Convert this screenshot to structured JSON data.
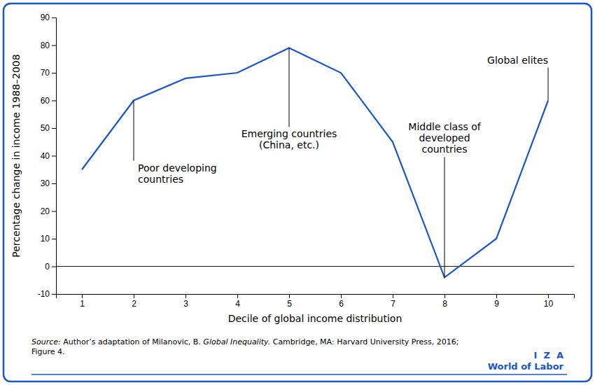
{
  "chart_data": {
    "type": "line",
    "x": [
      1,
      2,
      3,
      4,
      5,
      6,
      7,
      8,
      9,
      10
    ],
    "values": [
      35,
      60,
      68,
      70,
      79,
      70,
      45,
      -4,
      10,
      60
    ],
    "color": "#1a56cc",
    "xlim": [
      0.5,
      10.5
    ],
    "ylim": [
      -10,
      90
    ],
    "xticks": [
      1,
      2,
      3,
      4,
      5,
      6,
      7,
      8,
      9,
      10
    ],
    "yticks": [
      -10,
      0,
      10,
      20,
      30,
      40,
      50,
      60,
      70,
      80,
      90
    ],
    "xlabel": "Decile of global income distribution",
    "ylabel": "Percentage change in income 1988–2008",
    "grid": false,
    "annotations": [
      {
        "text": "Poor developing\ncountries",
        "x": 2
      },
      {
        "text": "Emerging countries\n(China, etc.)",
        "x": 5
      },
      {
        "text": "Middle class of\ndeveloped\ncountries",
        "x": 8
      },
      {
        "text": "Global elites",
        "x": 10
      }
    ],
    "source": [
      "Source:",
      " Author’s adaptation of Milanovic, B. ",
      "Global Inequality.",
      " Cambridge, MA: Harvard University Press, 2016;\nFigure 4."
    ],
    "branding": [
      "I  Z  A",
      "World of Labor"
    ]
  }
}
